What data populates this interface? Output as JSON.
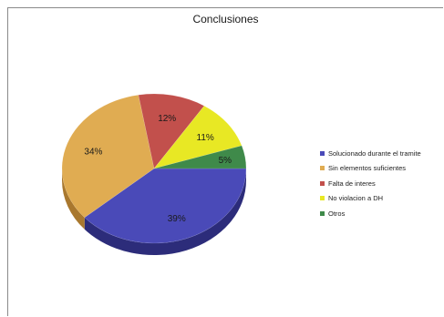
{
  "chart_data": {
    "type": "pie",
    "title": "Conclusiones",
    "slices": [
      {
        "label": "Solucionado durante el tramite",
        "value": 39,
        "display": "39%",
        "color": "#4a4ab8",
        "side": "#2c2c7a"
      },
      {
        "label": "Sin elementos suficientes",
        "value": 34,
        "display": "34%",
        "color": "#e0ac52",
        "side": "#a9782e"
      },
      {
        "label": "Falta de interes",
        "value": 12,
        "display": "12%",
        "color": "#c2504c",
        "side": "#8a3432"
      },
      {
        "label": "No violacion a DH",
        "value": 11,
        "display": "11%",
        "color": "#e8e824",
        "side": "#aaaa14"
      },
      {
        "label": "Otros",
        "value": 5,
        "display": "5%",
        "color": "#3f8a4a",
        "side": "#275a2f"
      }
    ],
    "legend_position": "right",
    "three_d": true
  }
}
